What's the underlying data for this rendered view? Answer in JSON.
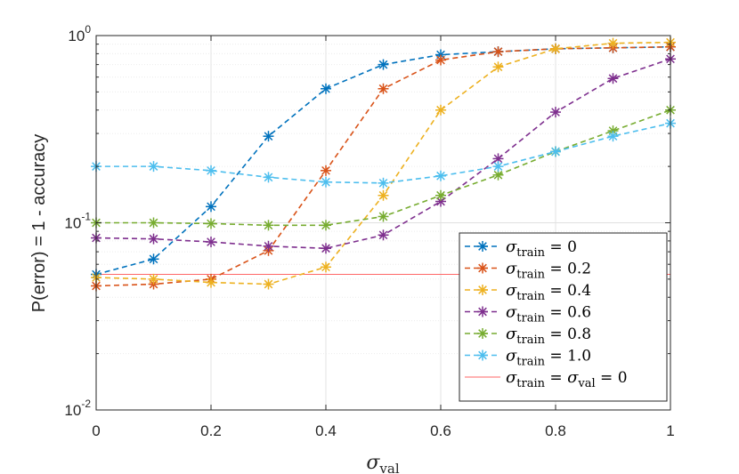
{
  "chart_data": {
    "type": "line",
    "yscale": "log",
    "xlabel": "σ_val",
    "ylabel": "P(error) = 1 - accuracy",
    "xlim": [
      0,
      1
    ],
    "ylim": [
      0.01,
      1
    ],
    "xticks": [
      "0",
      "0.2",
      "0.4",
      "0.6",
      "0.8",
      "1"
    ],
    "xtick_values": [
      0,
      0.2,
      0.4,
      0.6,
      0.8,
      1
    ],
    "yticks": [
      {
        "value": 0.01,
        "base": "10",
        "exp": "-2"
      },
      {
        "value": 0.1,
        "base": "10",
        "exp": "-1"
      },
      {
        "value": 1,
        "base": "10",
        "exp": "0"
      }
    ],
    "grid": true,
    "legend_position": "bottom-right",
    "x": [
      0,
      0.1,
      0.2,
      0.3,
      0.4,
      0.5,
      0.6,
      0.7,
      0.8,
      0.9,
      1.0
    ],
    "series": [
      {
        "name": "σ_train = 0",
        "sub": "train",
        "value_label": "0",
        "color": "#0072BD",
        "values": [
          0.053,
          0.064,
          0.122,
          0.29,
          0.52,
          0.7,
          0.79,
          0.82,
          0.85,
          0.86,
          0.87
        ]
      },
      {
        "name": "σ_train = 0.2",
        "sub": "train",
        "value_label": "0.2",
        "color": "#D95319",
        "values": [
          0.046,
          0.047,
          0.05,
          0.071,
          0.19,
          0.52,
          0.74,
          0.82,
          0.85,
          0.86,
          0.87
        ]
      },
      {
        "name": "σ_train = 0.4",
        "sub": "train",
        "value_label": "0.4",
        "color": "#EDB120",
        "values": [
          0.051,
          0.05,
          0.048,
          0.047,
          0.058,
          0.14,
          0.4,
          0.68,
          0.85,
          0.91,
          0.92
        ]
      },
      {
        "name": "σ_train = 0.6",
        "sub": "train",
        "value_label": "0.6",
        "color": "#7E2F8E",
        "values": [
          0.083,
          0.082,
          0.079,
          0.075,
          0.073,
          0.086,
          0.13,
          0.22,
          0.39,
          0.59,
          0.75
        ]
      },
      {
        "name": "σ_train = 0.8",
        "sub": "train",
        "value_label": "0.8",
        "color": "#77AC30",
        "values": [
          0.1,
          0.1,
          0.099,
          0.097,
          0.097,
          0.108,
          0.14,
          0.18,
          0.24,
          0.31,
          0.4
        ]
      },
      {
        "name": "σ_train = 1.0",
        "sub": "train",
        "value_label": "1.0",
        "color": "#4DBEEE",
        "values": [
          0.2,
          0.2,
          0.19,
          0.175,
          0.165,
          0.163,
          0.178,
          0.2,
          0.24,
          0.29,
          0.34
        ]
      }
    ],
    "reference_line": {
      "name": "σ_train = σ_val = 0",
      "value": 0.053,
      "color": "#FF6666"
    }
  }
}
